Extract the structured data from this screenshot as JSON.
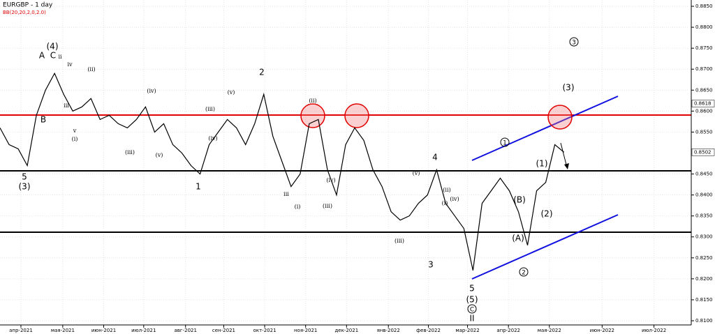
{
  "chart_data": {
    "type": "line",
    "title": "EURGBP - 1 day",
    "indicator": "BB(20,20,2,0,2.0)",
    "series": [
      {
        "name": "EURGBP",
        "color": "#000000",
        "values": [
          0.856,
          0.852,
          0.851,
          0.847,
          0.859,
          0.865,
          0.869,
          0.864,
          0.86,
          0.861,
          0.863,
          0.858,
          0.859,
          0.857,
          0.856,
          0.858,
          0.861,
          0.855,
          0.857,
          0.852,
          0.85,
          0.847,
          0.845,
          0.852,
          0.855,
          0.858,
          0.856,
          0.852,
          0.857,
          0.864,
          0.854,
          0.848,
          0.842,
          0.845,
          0.857,
          0.858,
          0.846,
          0.84,
          0.852,
          0.856,
          0.853,
          0.846,
          0.842,
          0.836,
          0.834,
          0.835,
          0.838,
          0.84,
          0.846,
          0.838,
          0.835,
          0.832,
          0.822,
          0.838,
          0.841,
          0.844,
          0.841,
          0.836,
          0.828,
          0.841,
          0.843,
          0.852,
          0.8502
        ]
      }
    ],
    "xlim": [
      0,
      76
    ],
    "xticks": [
      {
        "value": 2.3,
        "label": "апр-2021"
      },
      {
        "value": 6.9,
        "label": "мая-2021"
      },
      {
        "value": 11.4,
        "label": "июн-2021"
      },
      {
        "value": 15.8,
        "label": "июл-2021"
      },
      {
        "value": 20.4,
        "label": "авг-2021"
      },
      {
        "value": 24.6,
        "label": "сен-2021"
      },
      {
        "value": 29.1,
        "label": "окт-2021"
      },
      {
        "value": 33.6,
        "label": "ноя-2021"
      },
      {
        "value": 38.1,
        "label": "дек-2021"
      },
      {
        "value": 42.7,
        "label": "янв-2022"
      },
      {
        "value": 47.1,
        "label": "фев-2022"
      },
      {
        "value": 51.4,
        "label": "мар-2022"
      },
      {
        "value": 55.9,
        "label": "апр-2022"
      },
      {
        "value": 60.4,
        "label": "мая-2022"
      },
      {
        "value": 66.2,
        "label": "июн-2022"
      },
      {
        "value": 71.9,
        "label": "июл-2022"
      }
    ],
    "ylim": [
      0.809,
      0.8865
    ],
    "yticks": [
      {
        "value": 0.81,
        "label": "0.8100"
      },
      {
        "value": 0.815,
        "label": "0.8150"
      },
      {
        "value": 0.82,
        "label": "0.8200"
      },
      {
        "value": 0.825,
        "label": "0.8250"
      },
      {
        "value": 0.83,
        "label": "0.8300"
      },
      {
        "value": 0.835,
        "label": "0.8350"
      },
      {
        "value": 0.84,
        "label": "0.8400"
      },
      {
        "value": 0.845,
        "label": "0.8450"
      },
      {
        "value": 0.855,
        "label": "0.8550"
      },
      {
        "value": 0.86,
        "label": "0.8600"
      },
      {
        "value": 0.865,
        "label": "0.8650"
      },
      {
        "value": 0.87,
        "label": "0.8700"
      },
      {
        "value": 0.875,
        "label": "0.8750"
      },
      {
        "value": 0.88,
        "label": "0.8800"
      },
      {
        "value": 0.885,
        "label": "0.8850"
      }
    ],
    "price_labels": [
      0.8618,
      0.8502
    ],
    "grid": true,
    "wave_labels": [
      "(4)",
      "A",
      "C",
      "B",
      "5",
      "(3)",
      "2",
      "1",
      "4",
      "3",
      "5",
      "(5)",
      "II",
      "(3)",
      "(1)",
      "(2)",
      "(A)",
      "(B)"
    ],
    "circled_labels": [
      "3",
      "1",
      "2",
      "C"
    ],
    "minor_labels": [
      "iv",
      "ii",
      "iii",
      "v",
      "(i)",
      "(ii)",
      "(iii)",
      "(iv)",
      "(v)",
      "(iii)",
      "(iv)",
      "(v)",
      "iii",
      "(i)",
      "(ii)",
      "(iii)",
      "(iv)",
      "(v)",
      "(iii)",
      "(iv)",
      "(ii)",
      "(i)"
    ]
  }
}
